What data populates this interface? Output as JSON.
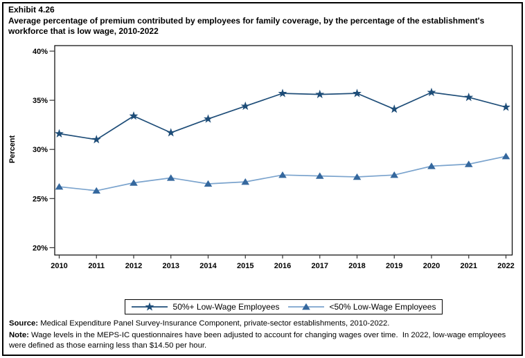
{
  "figure": {
    "exhibit": "Exhibit 4.26",
    "title": "Average percentage of premium contributed by employees for family coverage, by the percentage of the establishment's workforce that is low wage, 2010-2022"
  },
  "chart_data": {
    "type": "line",
    "x": [
      2010,
      2011,
      2012,
      2013,
      2014,
      2015,
      2016,
      2017,
      2018,
      2019,
      2020,
      2021,
      2022
    ],
    "series": [
      {
        "name": "50%+ Low-Wage Employees",
        "marker": "star",
        "marker_color": "#1E4D78",
        "line_color": "#1E4D78",
        "values": [
          31.6,
          31.0,
          33.4,
          31.7,
          33.1,
          34.4,
          35.7,
          35.6,
          35.7,
          34.1,
          35.8,
          35.3,
          34.3
        ]
      },
      {
        "name": "<50% Low-Wage Employees",
        "marker": "triangle",
        "marker_color": "#35689E",
        "line_color": "#7AA3CD",
        "values": [
          26.2,
          25.8,
          26.6,
          27.1,
          26.5,
          26.7,
          27.4,
          27.3,
          27.2,
          27.4,
          28.3,
          28.5,
          29.3
        ]
      }
    ],
    "ylabel": "Percent",
    "ylim": [
      20,
      40
    ],
    "yticks": [
      20,
      25,
      30,
      35,
      40
    ],
    "ytick_suffix": "%",
    "grid": false,
    "legend_position": "bottom-center",
    "axis_color": "#000000",
    "tick_color": "#333333"
  },
  "footnotes": {
    "source_label": "Source:",
    "source_text": " Medical Expenditure Panel Survey-Insurance Component, private-sector establishments, 2010-2022.",
    "note_label": "Note:",
    "note_text": " Wage levels in the MEPS-IC questionnaires have been adjusted to account for changing wages over time.  In 2022, low-wage employees were defined as those earning less than $14.50 per hour."
  }
}
